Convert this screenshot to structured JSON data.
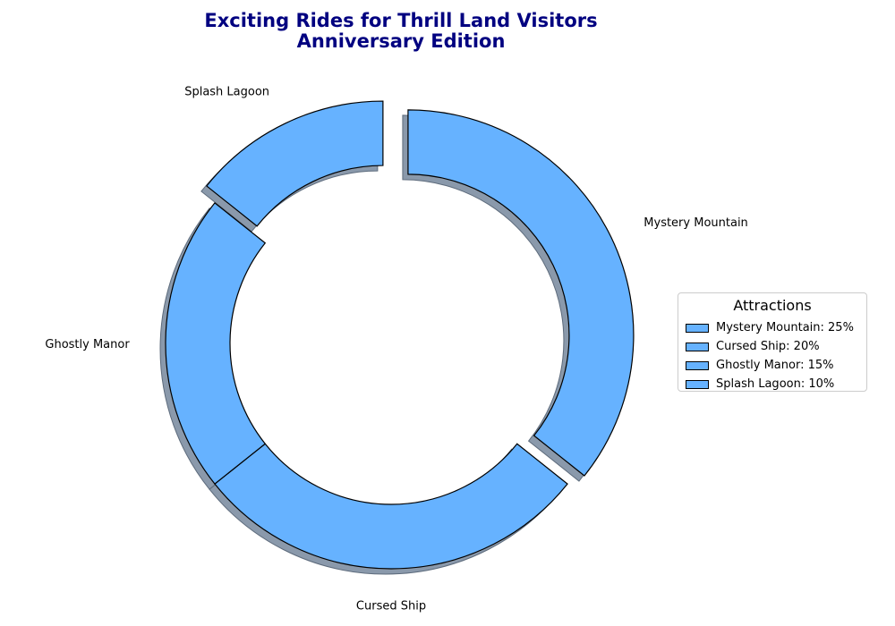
{
  "chart_data": {
    "type": "pie",
    "variant": "donut",
    "title_lines": [
      "Exciting Rides for Thrill Land Visitors",
      "Anniversary Edition"
    ],
    "categories": [
      "Mystery Mountain",
      "Cursed Ship",
      "Ghostly Manor",
      "Splash Lagoon"
    ],
    "values": [
      25,
      20,
      15,
      10
    ],
    "exploded": [
      "Mystery Mountain",
      "Splash Lagoon"
    ],
    "shadow": true,
    "legend": {
      "title": "Attractions",
      "placement": "center-right",
      "entries": [
        "Mystery Mountain: 25%",
        "Cursed Ship: 20%",
        "Ghostly Manor: 15%",
        "Splash Lagoon: 10%"
      ]
    },
    "colors": {
      "slice": "#66b2ff",
      "edge": "#000000",
      "shadow": "#8a99ab",
      "title": "#000080"
    }
  }
}
